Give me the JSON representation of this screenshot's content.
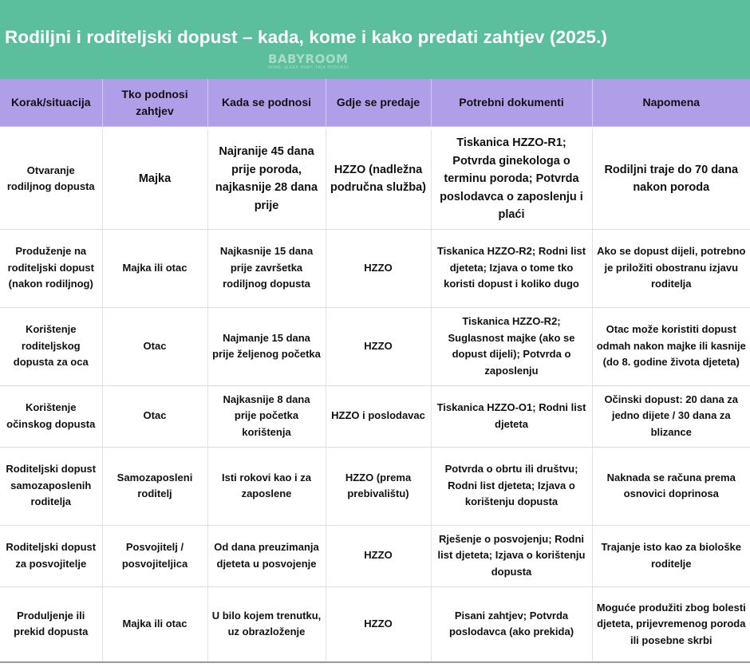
{
  "title": "Rodiljni i roditeljski dopust – kada, kome i kako predati zahtjev (2025.)",
  "logo": {
    "name": "BABYROOM",
    "tagline": "HOME. SLEEP. BABY. TALK PODCAST."
  },
  "colors": {
    "header_bg": "#5bbf9e",
    "table_header_bg": "#b09ee8"
  },
  "table": {
    "headers": [
      "Korak/situacija",
      "Tko podnosi zahtjev",
      "Kada se podnosi",
      "Gdje se predaje",
      "Potrebni dokumenti",
      "Napomena"
    ],
    "rows": [
      [
        "Otvaranje rodiljnog dopusta",
        "Majka",
        "Najranije 45 dana prije poroda, najkasnije 28 dana prije",
        "HZZO (nadležna područna služba)",
        "Tiskanica HZZO-R1; Potvrda ginekologa o terminu poroda; Potvrda poslodavca o zaposlenju i plaći",
        "Rodiljni traje do 70 dana nakon poroda"
      ],
      [
        "Produženje na roditeljski dopust (nakon rodiljnog)",
        "Majka ili otac",
        "Najkasnije 15 dana prije završetka rodiljnog dopusta",
        "HZZO",
        "Tiskanica HZZO-R2; Rodni list djeteta; Izjava o tome tko koristi dopust i koliko dugo",
        "Ako se dopust dijeli, potrebno je priložiti obostranu izjavu roditelja"
      ],
      [
        "Korištenje roditeljskog dopusta za oca",
        "Otac",
        "Najmanje 15 dana prije željenog početka",
        "HZZO",
        "Tiskanica HZZO-R2; Suglasnost majke (ako se dopust dijeli); Potvrda o zaposlenju",
        "Otac može koristiti dopust odmah nakon majke ili kasnije (do 8. godine života djeteta)"
      ],
      [
        "Korištenje očinskog dopusta",
        "Otac",
        "Najkasnije 8 dana prije početka korištenja",
        "HZZO i poslodavac",
        "Tiskanica HZZO-O1; Rodni list djeteta",
        "Očinski dopust: 20 dana za jedno dijete / 30 dana za blizance"
      ],
      [
        "Roditeljski dopust samozaposlenih roditelja",
        "Samozaposleni roditelj",
        "Isti rokovi kao i za zaposlene",
        "HZZO (prema prebivalištu)",
        "Potvrda o obrtu ili društvu; Rodni list djeteta; Izjava o korištenju dopusta",
        "Naknada se računa prema osnovici doprinosa"
      ],
      [
        "Roditeljski dopust za posvojitelje",
        "Posvojitelj / posvojiteljica",
        "Od dana preuzimanja djeteta u posvojenje",
        "HZZO",
        "Rješenje o posvojenju; Rodni list djeteta; Izjava o korištenju dopusta",
        "Trajanje isto kao za biološke roditelje"
      ],
      [
        "Produljenje ili prekid dopusta",
        "Majka ili otac",
        "U bilo kojem trenutku, uz obrazloženje",
        "HZZO",
        "Pisani zahtjev; Potvrda poslodavca (ako prekida)",
        "Moguće produžiti zbog bolesti djeteta, prijevremenog poroda ili posebne skrbi"
      ]
    ]
  }
}
